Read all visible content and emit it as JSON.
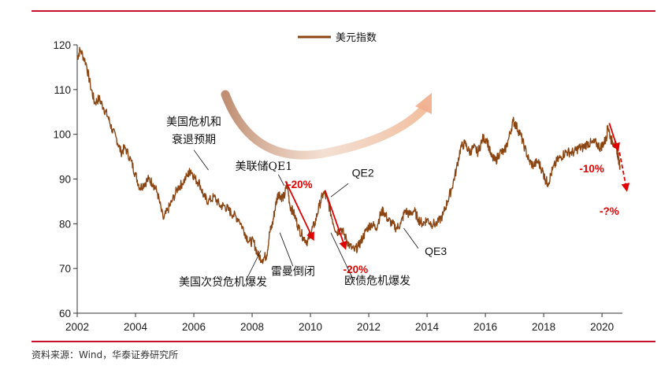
{
  "chart_data": {
    "type": "line",
    "title": "",
    "xlabel": "",
    "ylabel": "",
    "xlim": [
      2002,
      2020.7
    ],
    "ylim": [
      60,
      120
    ],
    "x_ticks": [
      "2002",
      "2004",
      "2006",
      "2008",
      "2010",
      "2012",
      "2014",
      "2016",
      "2018",
      "2020"
    ],
    "y_ticks": [
      "60",
      "70",
      "80",
      "90",
      "100",
      "110",
      "120"
    ],
    "legend": "美元指数",
    "series": [
      {
        "name": "美元指数",
        "color": "#8b4513",
        "points": [
          [
            2002.0,
            117
          ],
          [
            2002.1,
            119
          ],
          [
            2002.3,
            116
          ],
          [
            2002.45,
            111
          ],
          [
            2002.6,
            107
          ],
          [
            2002.75,
            108
          ],
          [
            2002.9,
            106
          ],
          [
            2003.05,
            104
          ],
          [
            2003.2,
            101
          ],
          [
            2003.35,
            99
          ],
          [
            2003.5,
            96
          ],
          [
            2003.65,
            97
          ],
          [
            2003.85,
            94
          ],
          [
            2004.0,
            91
          ],
          [
            2004.15,
            88
          ],
          [
            2004.3,
            89
          ],
          [
            2004.45,
            90
          ],
          [
            2004.6,
            89
          ],
          [
            2004.75,
            87
          ],
          [
            2004.95,
            81
          ],
          [
            2005.1,
            83
          ],
          [
            2005.25,
            85
          ],
          [
            2005.45,
            88
          ],
          [
            2005.6,
            89
          ],
          [
            2005.8,
            91
          ],
          [
            2005.9,
            92
          ],
          [
            2006.05,
            90
          ],
          [
            2006.2,
            89
          ],
          [
            2006.35,
            86
          ],
          [
            2006.5,
            85
          ],
          [
            2006.7,
            86
          ],
          [
            2006.9,
            84
          ],
          [
            2007.05,
            84
          ],
          [
            2007.2,
            83
          ],
          [
            2007.35,
            82
          ],
          [
            2007.55,
            81
          ],
          [
            2007.75,
            78
          ],
          [
            2007.9,
            76
          ],
          [
            2008.05,
            76
          ],
          [
            2008.2,
            73
          ],
          [
            2008.35,
            72
          ],
          [
            2008.5,
            73
          ],
          [
            2008.6,
            78
          ],
          [
            2008.7,
            80
          ],
          [
            2008.8,
            84
          ],
          [
            2008.9,
            87
          ],
          [
            2009.0,
            86
          ],
          [
            2009.1,
            86
          ],
          [
            2009.2,
            89
          ],
          [
            2009.3,
            84
          ],
          [
            2009.45,
            82
          ],
          [
            2009.6,
            79
          ],
          [
            2009.75,
            77
          ],
          [
            2009.9,
            76
          ],
          [
            2010.0,
            78
          ],
          [
            2010.15,
            80
          ],
          [
            2010.3,
            84
          ],
          [
            2010.45,
            87
          ],
          [
            2010.6,
            85
          ],
          [
            2010.75,
            81
          ],
          [
            2010.9,
            78
          ],
          [
            2011.05,
            79
          ],
          [
            2011.2,
            77
          ],
          [
            2011.35,
            75
          ],
          [
            2011.5,
            74
          ],
          [
            2011.65,
            75
          ],
          [
            2011.8,
            77
          ],
          [
            2011.95,
            79
          ],
          [
            2012.1,
            80
          ],
          [
            2012.25,
            79
          ],
          [
            2012.4,
            82
          ],
          [
            2012.5,
            83
          ],
          [
            2012.65,
            81
          ],
          [
            2012.8,
            80
          ],
          [
            2012.95,
            79
          ],
          [
            2013.1,
            80
          ],
          [
            2013.25,
            83
          ],
          [
            2013.4,
            82
          ],
          [
            2013.55,
            83
          ],
          [
            2013.7,
            81
          ],
          [
            2013.85,
            80
          ],
          [
            2014.0,
            81
          ],
          [
            2014.15,
            80
          ],
          [
            2014.35,
            80
          ],
          [
            2014.55,
            82
          ],
          [
            2014.7,
            85
          ],
          [
            2014.85,
            88
          ],
          [
            2015.0,
            92
          ],
          [
            2015.15,
            97
          ],
          [
            2015.3,
            98
          ],
          [
            2015.45,
            96
          ],
          [
            2015.6,
            97
          ],
          [
            2015.75,
            96
          ],
          [
            2015.9,
            99
          ],
          [
            2016.05,
            99
          ],
          [
            2016.2,
            95
          ],
          [
            2016.35,
            94
          ],
          [
            2016.5,
            96
          ],
          [
            2016.65,
            96
          ],
          [
            2016.8,
            99
          ],
          [
            2016.95,
            103
          ],
          [
            2017.05,
            102
          ],
          [
            2017.2,
            100
          ],
          [
            2017.35,
            97
          ],
          [
            2017.5,
            94
          ],
          [
            2017.65,
            93
          ],
          [
            2017.8,
            94
          ],
          [
            2017.95,
            92
          ],
          [
            2018.05,
            90
          ],
          [
            2018.15,
            89
          ],
          [
            2018.3,
            92
          ],
          [
            2018.45,
            94
          ],
          [
            2018.6,
            95
          ],
          [
            2018.75,
            96
          ],
          [
            2018.9,
            96
          ],
          [
            2019.05,
            96
          ],
          [
            2019.2,
            97
          ],
          [
            2019.35,
            97
          ],
          [
            2019.5,
            98
          ],
          [
            2019.65,
            98
          ],
          [
            2019.8,
            98
          ],
          [
            2019.95,
            97
          ],
          [
            2020.05,
            98
          ],
          [
            2020.15,
            99
          ],
          [
            2020.2,
            102
          ],
          [
            2020.3,
            99
          ],
          [
            2020.4,
            98
          ],
          [
            2020.5,
            97
          ],
          [
            2020.55,
            95
          ],
          [
            2020.62,
            93
          ]
        ]
      }
    ],
    "annotations": [
      {
        "text": "美国危机和",
        "x": 2006.0,
        "y": 102.0
      },
      {
        "text": "衰退预期",
        "x": 2006.0,
        "y": 98.0
      },
      {
        "text": "美联储QE1",
        "x": 2008.4,
        "y": 92.0
      },
      {
        "text": "QE2",
        "x": 2011.8,
        "y": 90.5
      },
      {
        "text": "QE3",
        "x": 2014.3,
        "y": 73.0
      },
      {
        "text": "雷曼倒闭",
        "x": 2009.4,
        "y": 68.5
      },
      {
        "text": "美国次贷危机爆发",
        "x": 2007.0,
        "y": 66.2
      },
      {
        "text": "欧债危机爆发",
        "x": 2012.3,
        "y": 66.4
      }
    ],
    "drawdowns": [
      {
        "label": "-20%",
        "from": [
          2009.15,
          89.5
        ],
        "to": [
          2010.1,
          76.5
        ]
      },
      {
        "label": "-20%",
        "from": [
          2010.5,
          87.5
        ],
        "to": [
          2011.2,
          74.5
        ]
      },
      {
        "label": "-10%",
        "from": [
          2020.25,
          102.5
        ],
        "to": [
          2020.55,
          96.5
        ]
      },
      {
        "label": "-?%",
        "from": [
          2020.6,
          96.0
        ],
        "to": [
          2020.85,
          87.5
        ]
      }
    ]
  },
  "source": "资料来源：Wind，华泰证券研究所"
}
